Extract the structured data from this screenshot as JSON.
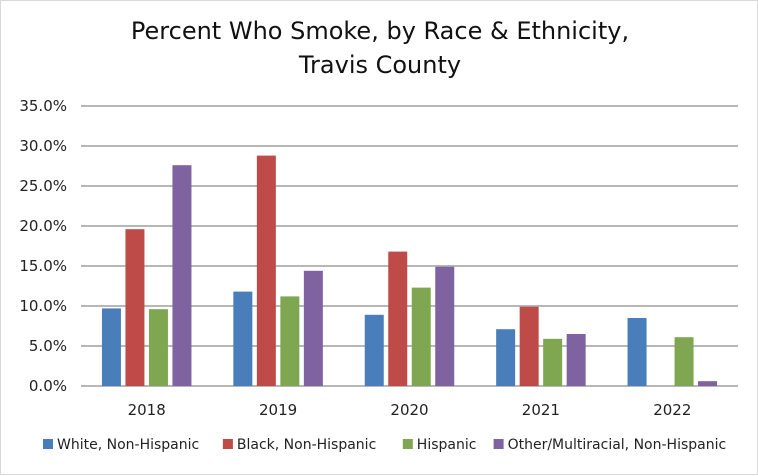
{
  "chart_data": {
    "type": "bar",
    "title_line_1": "Percent Who Smoke, by Race & Ethnicity,",
    "title_line_2": "Travis County",
    "xlabel": "",
    "ylabel": "",
    "categories": [
      "2018",
      "2019",
      "2020",
      "2021",
      "2022"
    ],
    "ylim": [
      0,
      35
    ],
    "y_ticks": [
      "0.0%",
      "5.0%",
      "10.0%",
      "15.0%",
      "20.0%",
      "25.0%",
      "30.0%",
      "35.0%"
    ],
    "grid": true,
    "legend_position": "bottom",
    "series": [
      {
        "name": "White, Non-Hispanic",
        "color": "#4a7ebb",
        "values": [
          9.7,
          11.8,
          8.9,
          7.1,
          8.5
        ]
      },
      {
        "name": "Black, Non-Hispanic",
        "color": "#be4b48",
        "values": [
          19.6,
          28.8,
          16.8,
          9.9,
          null
        ]
      },
      {
        "name": "Hispanic",
        "color": "#7fa650",
        "values": [
          9.6,
          11.2,
          12.3,
          5.9,
          6.1
        ]
      },
      {
        "name": "Other/Multiracial, Non-Hispanic",
        "color": "#7f62a0",
        "values": [
          27.6,
          14.4,
          14.9,
          6.5,
          0.6
        ]
      }
    ]
  }
}
